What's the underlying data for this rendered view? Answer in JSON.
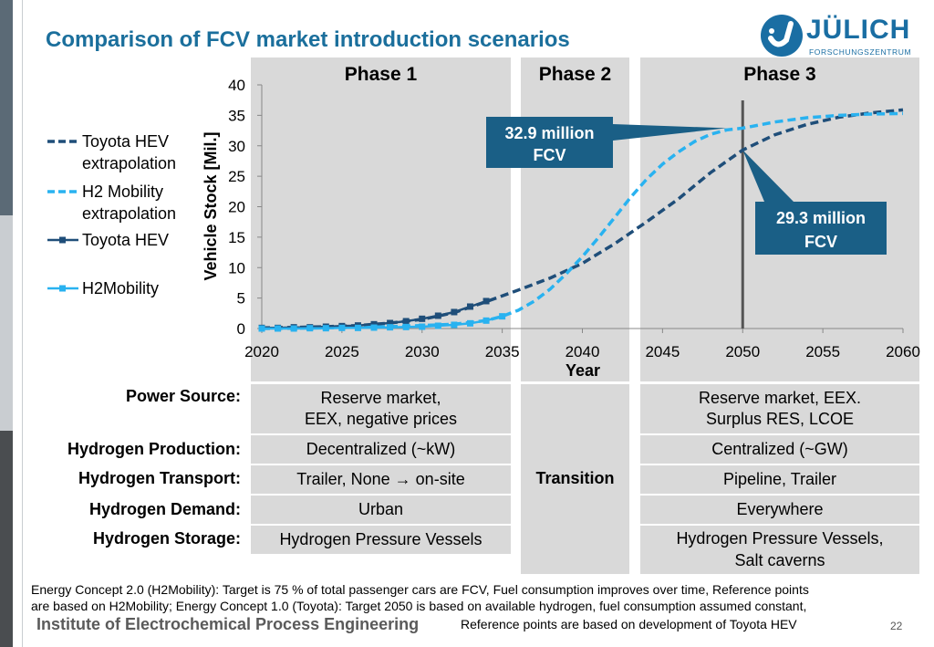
{
  "title": "Comparison of FCV market introduction scenarios",
  "logo": {
    "name": "JÜLICH",
    "subtitle": "FORSCHUNGSZENTRUM"
  },
  "colors": {
    "accent": "#1b6f9c",
    "dark_series": "#1f4e79",
    "light_series": "#29b2f0",
    "callout": "#1a5f86",
    "phase_bg": "#d9d9d9"
  },
  "phases": [
    "Phase 1",
    "Phase 2",
    "Phase 3"
  ],
  "chart_data": {
    "type": "line",
    "xlabel": "Year",
    "ylabel": "Vehicle Stock [Mil.]",
    "xlim": [
      2020,
      2060
    ],
    "ylim": [
      0,
      40
    ],
    "x_ticks": [
      2020,
      2025,
      2030,
      2035,
      2040,
      2045,
      2050,
      2055,
      2060
    ],
    "y_ticks": [
      0,
      5,
      10,
      15,
      20,
      25,
      30,
      35,
      40
    ],
    "legend_position": "left",
    "series": [
      {
        "name": "Toyota HEV extrapolation",
        "style": "dashed",
        "color": "#1f4e79",
        "x": [
          2020,
          2022,
          2024,
          2026,
          2028,
          2030,
          2032,
          2033,
          2034,
          2036,
          2038,
          2040,
          2042,
          2044,
          2046,
          2048,
          2050,
          2052,
          2054,
          2056,
          2058,
          2060
        ],
        "y": [
          0.1,
          0.2,
          0.3,
          0.5,
          0.9,
          1.5,
          2.6,
          3.5,
          4.4,
          6.3,
          8.3,
          10.7,
          13.9,
          17.5,
          21.3,
          25.6,
          29.3,
          31.8,
          33.5,
          34.7,
          35.4,
          35.9
        ]
      },
      {
        "name": "H2 Mobility extrapolation",
        "style": "dashed",
        "color": "#29b2f0",
        "x": [
          2020,
          2024,
          2028,
          2032,
          2034,
          2035,
          2036,
          2037,
          2038,
          2039,
          2040,
          2041,
          2042,
          2043,
          2044,
          2045,
          2046,
          2047,
          2048,
          2049,
          2050,
          2052,
          2054,
          2056,
          2058,
          2060
        ],
        "y": [
          0,
          0.1,
          0.3,
          0.7,
          1.3,
          2.0,
          3.0,
          4.5,
          6.5,
          9.0,
          11.8,
          14.9,
          18.2,
          21.5,
          24.5,
          27.0,
          29.0,
          30.7,
          31.9,
          32.6,
          32.9,
          33.9,
          34.6,
          35.0,
          35.2,
          35.3
        ]
      },
      {
        "name": "Toyota HEV",
        "style": "solid-markers",
        "color": "#1f4e79",
        "x": [
          2020,
          2021,
          2022,
          2023,
          2024,
          2025,
          2026,
          2027,
          2028,
          2029,
          2030,
          2031,
          2032,
          2033,
          2034
        ],
        "y": [
          0.1,
          0.1,
          0.2,
          0.2,
          0.3,
          0.4,
          0.5,
          0.7,
          0.9,
          1.2,
          1.6,
          2.1,
          2.7,
          3.6,
          4.5
        ]
      },
      {
        "name": "H2Mobility",
        "style": "solid-markers",
        "color": "#29b2f0",
        "x": [
          2020,
          2021,
          2022,
          2023,
          2024,
          2025,
          2026,
          2027,
          2028,
          2029,
          2030,
          2031,
          2032,
          2033,
          2034,
          2035
        ],
        "y": [
          0,
          0,
          0,
          0.05,
          0.05,
          0.1,
          0.1,
          0.15,
          0.2,
          0.25,
          0.3,
          0.45,
          0.6,
          0.85,
          1.3,
          2.0
        ]
      }
    ],
    "vertical_marker": {
      "x": 2050
    },
    "annotations": [
      {
        "text_line1": "32.9 million",
        "text_line2": "FCV",
        "x": 2049,
        "y": 32.9
      },
      {
        "text_line1": "29.3 million",
        "text_line2": "FCV",
        "x": 2050,
        "y": 29.3
      }
    ]
  },
  "table": {
    "rows": [
      {
        "label": "Power Source:",
        "phase1": "Reserve market,\nEEX, negative prices",
        "phase3": "Reserve market, EEX.\nSurplus RES, LCOE"
      },
      {
        "label": "Hydrogen Production:",
        "phase1": "Decentralized (~kW)",
        "phase3": "Centralized (~GW)"
      },
      {
        "label": "Hydrogen Transport:",
        "phase1": "Trailer, None → on-site",
        "phase3": "Pipeline, Trailer"
      },
      {
        "label": "Hydrogen Demand:",
        "phase1": "Urban",
        "phase3": "Everywhere"
      },
      {
        "label": "Hydrogen Storage:",
        "phase1": "Hydrogen Pressure Vessels",
        "phase3": "Hydrogen Pressure Vessels,\nSalt caverns"
      }
    ],
    "phase2": "Transition"
  },
  "footnote": {
    "line1": "Energy Concept 2.0 (H2Mobility): Target is 75 % of total passenger cars are FCV, Fuel consumption improves over time, Reference points",
    "line2": "are based on H2Mobility; Energy Concept 1.0 (Toyota): Target 2050 is based on available hydrogen, fuel consumption assumed constant,",
    "line3": "Reference points are based on development of Toyota HEV"
  },
  "institute": "Institute of Electrochemical Process Engineering",
  "page_number": "22"
}
